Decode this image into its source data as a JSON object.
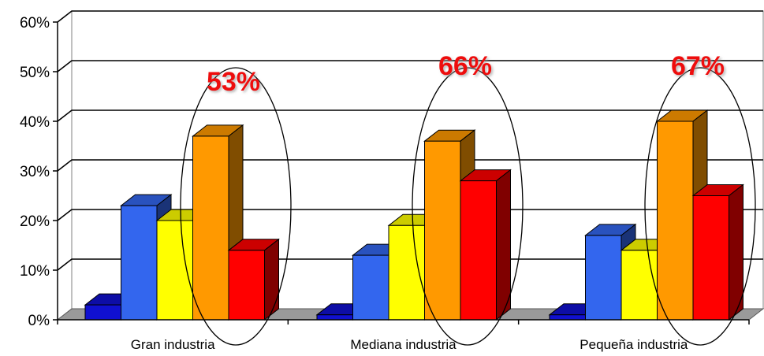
{
  "chart_data": {
    "type": "bar",
    "title": "",
    "xlabel": "",
    "ylabel": "",
    "categories": [
      "Gran industria",
      "Mediana industria",
      "Pequeña industria"
    ],
    "series": [
      {
        "color": "#1010d0",
        "values": [
          3,
          1,
          1
        ]
      },
      {
        "color": "#3366ee",
        "values": [
          23,
          13,
          17
        ]
      },
      {
        "color": "#ffff00",
        "values": [
          20,
          19,
          14
        ]
      },
      {
        "color": "#ff9900",
        "values": [
          37,
          36,
          40
        ]
      },
      {
        "color": "#ff0000",
        "values": [
          14,
          28,
          25
        ]
      }
    ],
    "ylim": [
      0,
      60
    ],
    "yticks": [
      "0%",
      "10%",
      "20%",
      "30%",
      "40%",
      "50%",
      "60%"
    ],
    "grid": true,
    "three_d": true,
    "annotations": [
      {
        "category": "Gran industria",
        "text": "53%"
      },
      {
        "category": "Mediana industria",
        "text": "66%"
      },
      {
        "category": "Pequeña industria",
        "text": "67%"
      }
    ]
  }
}
